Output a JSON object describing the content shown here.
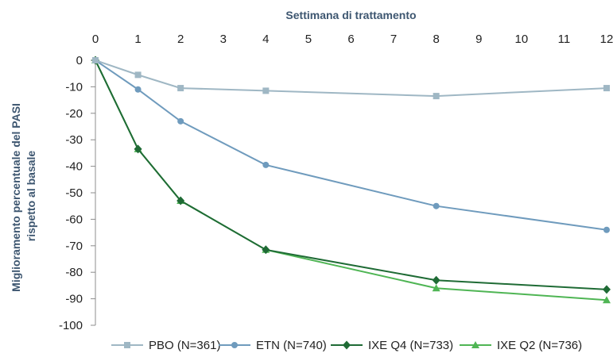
{
  "chart_data": {
    "type": "line",
    "xlabel": "Settimana di trattamento",
    "ylabel_lines": [
      "Miglioramento percentuale del PASI",
      "rispetto al basale"
    ],
    "x_ticks": [
      0,
      1,
      2,
      3,
      4,
      5,
      6,
      7,
      8,
      9,
      10,
      11,
      12
    ],
    "y_ticks": [
      0,
      -10,
      -20,
      -30,
      -40,
      -50,
      -60,
      -70,
      -80,
      -90,
      -100
    ],
    "xlim": [
      0,
      12
    ],
    "ylim": [
      -100,
      0
    ],
    "x_axis_position": "top",
    "grid": false,
    "legend_position": "bottom",
    "series": [
      {
        "name": "PBO (N=361)",
        "color": "#9fb7c4",
        "marker": "square",
        "points": [
          [
            0,
            0
          ],
          [
            1,
            -5.5
          ],
          [
            2,
            -10.5
          ],
          [
            4,
            -11.5
          ],
          [
            8,
            -13.5
          ],
          [
            12,
            -10.5
          ]
        ]
      },
      {
        "name": "ETN (N=740)",
        "color": "#6f9bbd",
        "marker": "circle",
        "points": [
          [
            0,
            0
          ],
          [
            1,
            -11
          ],
          [
            2,
            -23
          ],
          [
            4,
            -39.5
          ],
          [
            8,
            -55
          ],
          [
            12,
            -64
          ]
        ]
      },
      {
        "name": "IXE Q4 (N=733)",
        "color": "#1f6b35",
        "marker": "diamond",
        "points": [
          [
            0,
            0
          ],
          [
            1,
            -33.5
          ],
          [
            2,
            -53
          ],
          [
            4,
            -71.5
          ],
          [
            8,
            -83
          ],
          [
            12,
            -86.5
          ]
        ]
      },
      {
        "name": "IXE Q2 (N=736)",
        "color": "#4fb554",
        "marker": "triangle",
        "points": [
          [
            0,
            0
          ],
          [
            1,
            -33.5
          ],
          [
            2,
            -53
          ],
          [
            4,
            -71.5
          ],
          [
            8,
            -86
          ],
          [
            12,
            -90.5
          ]
        ]
      }
    ]
  }
}
